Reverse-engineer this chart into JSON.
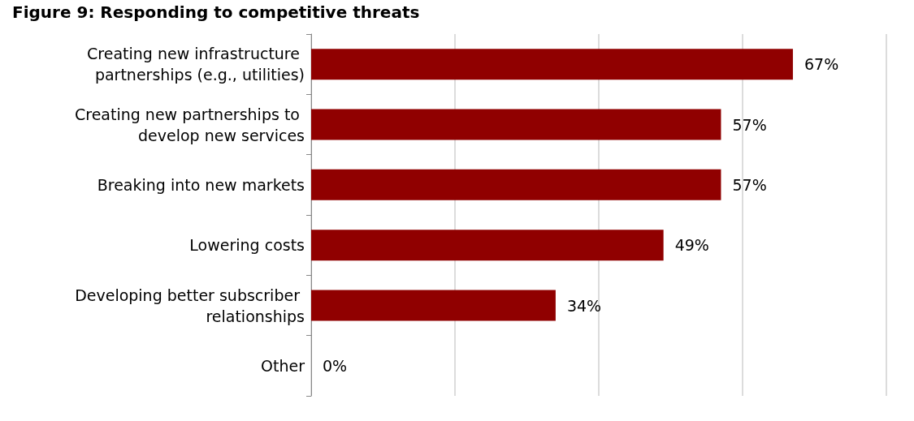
{
  "chart_data": {
    "type": "bar",
    "orientation": "horizontal",
    "title": "Figure 9: Responding to competitive threats",
    "categories": [
      "Creating new infrastructure partnerships (e.g., utilities)",
      "Creating new partnerships to develop new services",
      "Breaking into new markets",
      "Lowering costs",
      "Developing better subscriber relationships",
      "Other"
    ],
    "values": [
      67,
      57,
      57,
      49,
      34,
      0
    ],
    "value_labels": [
      "67%",
      "57%",
      "57%",
      "49%",
      "34%",
      "0%"
    ],
    "color": "#900000",
    "xlim": [
      0,
      80
    ],
    "xticks": [
      {
        "value": 0,
        "label": null
      },
      {
        "value": 20,
        "label": null
      },
      {
        "value": 40,
        "label": null
      },
      {
        "value": 60,
        "label": null
      },
      {
        "value": 80,
        "label": null
      }
    ],
    "grid": "x",
    "tick_labels": "y"
  }
}
